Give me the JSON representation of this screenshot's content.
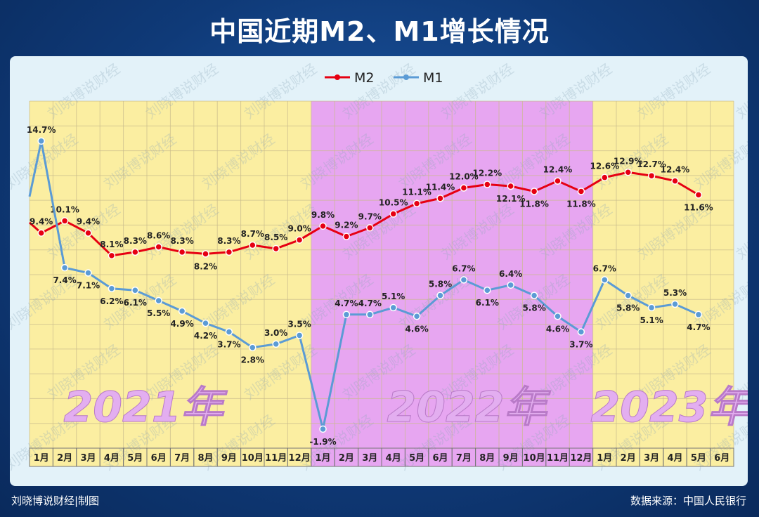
{
  "title": "中国近期M2、M1增长情况",
  "watermark": "刘晓博说财经",
  "footer": {
    "left": "刘晓博说财经|制图",
    "right": "数据来源：中国人民银行"
  },
  "colors": {
    "m2": "#e60012",
    "m1": "#5b9bd5",
    "year_2021_bg": "#fbeea1",
    "year_2022_bg": "#e7a6f1",
    "year_2023_bg": "#fbeea1",
    "year_text": "#e3aef0"
  },
  "chart_data": {
    "type": "line",
    "title": "中国近期M2、M1增长情况",
    "legend_position": "top-center",
    "grid": true,
    "ylim": [
      -3,
      17
    ],
    "years": [
      {
        "label": "2021年",
        "start_index": 0,
        "end_index": 11
      },
      {
        "label": "2022年",
        "start_index": 12,
        "end_index": 23
      },
      {
        "label": "2023年",
        "start_index": 24,
        "end_index": 29
      }
    ],
    "categories": [
      "1月",
      "2月",
      "3月",
      "4月",
      "5月",
      "6月",
      "7月",
      "8月",
      "9月",
      "10月",
      "11月",
      "12月",
      "1月",
      "2月",
      "3月",
      "4月",
      "5月",
      "6月",
      "7月",
      "8月",
      "9月",
      "10月",
      "11月",
      "12月",
      "1月",
      "2月",
      "3月",
      "4月",
      "5月",
      "6月"
    ],
    "series": [
      {
        "name": "M2",
        "values": [
          9.4,
          10.1,
          9.4,
          8.1,
          8.3,
          8.6,
          8.3,
          8.2,
          8.3,
          8.7,
          8.5,
          9.0,
          9.8,
          9.2,
          9.7,
          10.5,
          11.1,
          11.4,
          12.0,
          12.2,
          12.1,
          11.8,
          12.4,
          11.8,
          12.6,
          12.9,
          12.7,
          12.4,
          11.6,
          null
        ]
      },
      {
        "name": "M1",
        "values": [
          14.7,
          7.4,
          7.1,
          6.2,
          6.1,
          5.5,
          4.9,
          4.2,
          3.7,
          2.8,
          3.0,
          3.5,
          -1.9,
          4.7,
          4.7,
          5.1,
          4.6,
          5.8,
          6.7,
          6.1,
          6.4,
          5.8,
          4.6,
          3.7,
          6.7,
          5.8,
          5.1,
          5.3,
          4.7,
          null
        ]
      }
    ]
  }
}
